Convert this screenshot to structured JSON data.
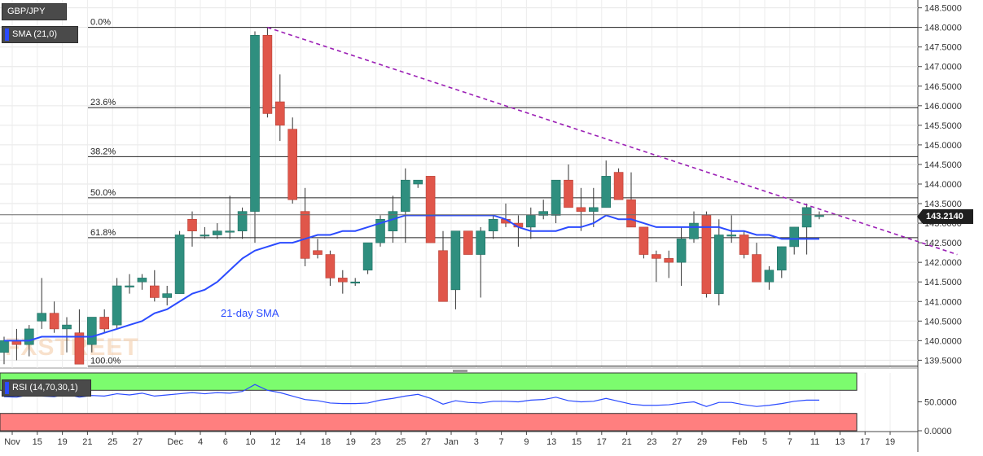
{
  "legend": {
    "symbol": "GBP/JPY",
    "sma": "SMA (21,0)",
    "rsi": "RSI (14,70,30,1)"
  },
  "last_price": "143.2140",
  "watermark": "FXSTREET",
  "colors": {
    "bull": "#2f8f7f",
    "bear": "#e0564a",
    "sma": "#2b4bff",
    "trendline": "#9b1fb5",
    "rsi_upper_zone": "#7cfc6e",
    "rsi_lower_zone": "#ff7f7f",
    "rsi_line": "#2b4bff"
  },
  "chart_data": [
    {
      "type": "candlestick",
      "title": "GBP/JPY",
      "ylim": [
        139.3,
        148.7
      ],
      "yticks": [
        "139.5000",
        "140.0000",
        "140.5000",
        "141.0000",
        "141.5000",
        "142.0000",
        "142.5000",
        "143.0000",
        "143.5000",
        "144.0000",
        "144.5000",
        "145.0000",
        "145.5000",
        "146.0000",
        "146.5000",
        "147.0000",
        "147.5000",
        "148.0000",
        "148.5000"
      ],
      "xticks": [
        "Nov",
        "15",
        "19",
        "21",
        "25",
        "27",
        "Dec",
        "4",
        "6",
        "10",
        "12",
        "14",
        "18",
        "19",
        "23",
        "25",
        "27",
        "Jan",
        "3",
        "7",
        "9",
        "13",
        "15",
        "17",
        "21",
        "23",
        "27",
        "29",
        "Feb",
        "5",
        "7",
        "11",
        "13",
        "17",
        "19"
      ],
      "candles": [
        {
          "o": 139.7,
          "h": 140.1,
          "l": 139.4,
          "c": 140.0
        },
        {
          "o": 140.0,
          "h": 140.3,
          "l": 139.5,
          "c": 139.9
        },
        {
          "o": 139.9,
          "h": 140.4,
          "l": 139.6,
          "c": 140.3
        },
        {
          "o": 140.5,
          "h": 141.6,
          "l": 140.3,
          "c": 140.7
        },
        {
          "o": 140.7,
          "h": 141.0,
          "l": 140.2,
          "c": 140.3
        },
        {
          "o": 140.3,
          "h": 140.6,
          "l": 139.7,
          "c": 140.4
        },
        {
          "o": 140.2,
          "h": 140.8,
          "l": 139.4,
          "c": 139.4
        },
        {
          "o": 139.9,
          "h": 140.6,
          "l": 139.7,
          "c": 140.6
        },
        {
          "o": 140.6,
          "h": 140.8,
          "l": 140.2,
          "c": 140.3
        },
        {
          "o": 140.4,
          "h": 141.6,
          "l": 140.3,
          "c": 141.4
        },
        {
          "o": 141.4,
          "h": 141.7,
          "l": 141.2,
          "c": 141.4
        },
        {
          "o": 141.5,
          "h": 141.7,
          "l": 141.3,
          "c": 141.6
        },
        {
          "o": 141.4,
          "h": 141.8,
          "l": 141.0,
          "c": 141.1
        },
        {
          "o": 141.1,
          "h": 141.4,
          "l": 140.9,
          "c": 141.2
        },
        {
          "o": 141.2,
          "h": 142.8,
          "l": 141.2,
          "c": 142.7
        },
        {
          "o": 143.1,
          "h": 143.3,
          "l": 142.4,
          "c": 142.8
        },
        {
          "o": 142.7,
          "h": 142.9,
          "l": 142.6,
          "c": 142.7
        },
        {
          "o": 142.7,
          "h": 143.0,
          "l": 142.6,
          "c": 142.8
        },
        {
          "o": 142.8,
          "h": 143.7,
          "l": 142.6,
          "c": 142.8
        },
        {
          "o": 142.8,
          "h": 143.4,
          "l": 142.6,
          "c": 143.3
        },
        {
          "o": 143.3,
          "h": 147.9,
          "l": 142.5,
          "c": 147.8
        },
        {
          "o": 147.8,
          "h": 148.0,
          "l": 145.7,
          "c": 145.8
        },
        {
          "o": 146.1,
          "h": 146.8,
          "l": 145.1,
          "c": 145.5
        },
        {
          "o": 145.4,
          "h": 145.7,
          "l": 143.5,
          "c": 143.6
        },
        {
          "o": 143.3,
          "h": 143.9,
          "l": 141.9,
          "c": 142.1
        },
        {
          "o": 142.3,
          "h": 142.6,
          "l": 142.1,
          "c": 142.2
        },
        {
          "o": 142.2,
          "h": 142.3,
          "l": 141.4,
          "c": 141.6
        },
        {
          "o": 141.6,
          "h": 141.8,
          "l": 141.2,
          "c": 141.5
        },
        {
          "o": 141.5,
          "h": 141.6,
          "l": 141.4,
          "c": 141.5
        },
        {
          "o": 141.8,
          "h": 142.5,
          "l": 141.7,
          "c": 142.5
        },
        {
          "o": 142.5,
          "h": 143.2,
          "l": 142.4,
          "c": 143.1
        },
        {
          "o": 142.8,
          "h": 143.7,
          "l": 142.5,
          "c": 143.3
        },
        {
          "o": 143.3,
          "h": 144.4,
          "l": 142.5,
          "c": 144.1
        },
        {
          "o": 144.0,
          "h": 144.1,
          "l": 143.9,
          "c": 144.1
        },
        {
          "o": 144.2,
          "h": 144.2,
          "l": 142.5,
          "c": 142.5
        },
        {
          "o": 142.3,
          "h": 142.8,
          "l": 141.0,
          "c": 141.0
        },
        {
          "o": 141.3,
          "h": 142.8,
          "l": 140.8,
          "c": 142.8
        },
        {
          "o": 142.8,
          "h": 142.8,
          "l": 142.2,
          "c": 142.2
        },
        {
          "o": 142.2,
          "h": 142.9,
          "l": 141.1,
          "c": 142.8
        },
        {
          "o": 142.8,
          "h": 143.2,
          "l": 142.6,
          "c": 143.1
        },
        {
          "o": 143.1,
          "h": 143.5,
          "l": 142.9,
          "c": 143.0
        },
        {
          "o": 143.0,
          "h": 143.2,
          "l": 142.4,
          "c": 142.9
        },
        {
          "o": 142.9,
          "h": 143.4,
          "l": 142.6,
          "c": 143.2
        },
        {
          "o": 143.2,
          "h": 143.6,
          "l": 143.1,
          "c": 143.3
        },
        {
          "o": 143.2,
          "h": 144.1,
          "l": 143.0,
          "c": 144.1
        },
        {
          "o": 144.1,
          "h": 144.5,
          "l": 143.4,
          "c": 143.4
        },
        {
          "o": 143.4,
          "h": 143.9,
          "l": 142.8,
          "c": 143.3
        },
        {
          "o": 143.3,
          "h": 143.9,
          "l": 142.9,
          "c": 143.4
        },
        {
          "o": 143.4,
          "h": 144.6,
          "l": 143.4,
          "c": 144.2
        },
        {
          "o": 144.3,
          "h": 144.4,
          "l": 143.6,
          "c": 143.6
        },
        {
          "o": 143.6,
          "h": 144.3,
          "l": 142.9,
          "c": 142.9
        },
        {
          "o": 142.9,
          "h": 142.9,
          "l": 142.1,
          "c": 142.2
        },
        {
          "o": 142.2,
          "h": 142.3,
          "l": 141.5,
          "c": 142.1
        },
        {
          "o": 142.1,
          "h": 142.3,
          "l": 141.6,
          "c": 142.0
        },
        {
          "o": 142.0,
          "h": 142.9,
          "l": 141.4,
          "c": 142.6
        },
        {
          "o": 142.6,
          "h": 143.3,
          "l": 142.5,
          "c": 143.0
        },
        {
          "o": 143.2,
          "h": 143.3,
          "l": 141.1,
          "c": 141.2
        },
        {
          "o": 141.2,
          "h": 143.1,
          "l": 140.9,
          "c": 142.7
        },
        {
          "o": 142.7,
          "h": 143.2,
          "l": 142.5,
          "c": 142.7
        },
        {
          "o": 142.7,
          "h": 142.8,
          "l": 142.1,
          "c": 142.2
        },
        {
          "o": 142.2,
          "h": 142.5,
          "l": 141.5,
          "c": 141.5
        },
        {
          "o": 141.5,
          "h": 141.9,
          "l": 141.3,
          "c": 141.8
        },
        {
          "o": 141.8,
          "h": 142.4,
          "l": 141.6,
          "c": 142.4
        },
        {
          "o": 142.4,
          "h": 142.9,
          "l": 142.2,
          "c": 142.9
        },
        {
          "o": 142.9,
          "h": 143.5,
          "l": 142.2,
          "c": 143.4
        },
        {
          "o": 143.2,
          "h": 143.3,
          "l": 143.1,
          "c": 143.2
        }
      ],
      "sma_21": [
        140.0,
        140.0,
        140.0,
        140.1,
        140.1,
        140.1,
        140.1,
        140.1,
        140.2,
        140.3,
        140.4,
        140.5,
        140.7,
        140.8,
        141.0,
        141.2,
        141.3,
        141.5,
        141.8,
        142.1,
        142.3,
        142.4,
        142.5,
        142.5,
        142.6,
        142.7,
        142.7,
        142.8,
        142.8,
        142.9,
        143.0,
        143.1,
        143.2,
        143.2,
        143.2,
        143.2,
        143.2,
        143.2,
        143.2,
        143.2,
        143.1,
        142.9,
        142.8,
        142.8,
        142.8,
        142.9,
        142.9,
        143.0,
        143.2,
        143.1,
        143.1,
        143.0,
        142.9,
        142.9,
        142.9,
        142.9,
        142.9,
        142.9,
        142.8,
        142.8,
        142.7,
        142.7,
        142.6,
        142.6,
        142.6,
        142.6
      ],
      "sma_label": "21-day SMA",
      "trendline": {
        "from": {
          "index": 21,
          "value": 148.0
        },
        "to": {
          "index": 76,
          "value": 142.2
        }
      },
      "fibonacci": [
        {
          "label": "0.0%",
          "value": 148.0
        },
        {
          "label": "23.6%",
          "value": 145.95
        },
        {
          "label": "38.2%",
          "value": 144.7
        },
        {
          "label": "50.0%",
          "value": 143.65
        },
        {
          "label": "61.8%",
          "value": 142.63
        },
        {
          "label": "100.0%",
          "value": 139.35
        }
      ],
      "last_price": 143.214
    },
    {
      "type": "line",
      "title": "RSI (14,70,30,1)",
      "ylim": [
        0,
        100
      ],
      "yticks": [
        "0.0000",
        "50.0000"
      ],
      "zones": {
        "overbought": 70,
        "oversold": 30
      },
      "values": [
        59,
        58,
        62,
        60,
        59,
        63,
        58,
        61,
        60,
        64,
        62,
        65,
        60,
        62,
        64,
        66,
        64,
        66,
        65,
        68,
        80,
        70,
        66,
        60,
        54,
        52,
        48,
        47,
        47,
        48,
        53,
        56,
        60,
        63,
        56,
        46,
        52,
        49,
        48,
        51,
        51,
        50,
        53,
        54,
        58,
        52,
        50,
        51,
        56,
        51,
        46,
        44,
        44,
        45,
        48,
        50,
        42,
        49,
        49,
        45,
        42,
        44,
        47,
        51,
        53,
        53
      ]
    }
  ]
}
